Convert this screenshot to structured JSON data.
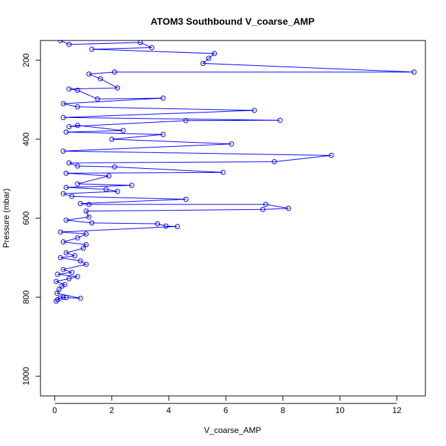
{
  "chart_data": {
    "type": "line",
    "title": "ATOM3 Southbound V_coarse_AMP",
    "xlabel": "V_coarse_AMP",
    "ylabel": "Pressure (mbar)",
    "xlim": [
      -0.5,
      13.0
    ],
    "ylim": [
      1050,
      150
    ],
    "y_reversed": true,
    "x_ticks": [
      "0",
      "2",
      "4",
      "6",
      "8",
      "10",
      "12"
    ],
    "y_ticks": [
      "200",
      "400",
      "600",
      "800",
      "1000"
    ],
    "x_tick_values": [
      0,
      2,
      4,
      6,
      8,
      10,
      12
    ],
    "y_tick_values": [
      200,
      400,
      600,
      800,
      1000
    ],
    "grid": false,
    "series": [
      {
        "color": "#0000ff",
        "marker": "open-circle",
        "points": [
          [
            0.05,
            810
          ],
          [
            0.1,
            806
          ],
          [
            0.2,
            802
          ],
          [
            0.3,
            800
          ],
          [
            0.4,
            801
          ],
          [
            0.9,
            803
          ],
          [
            0.08,
            790
          ],
          [
            0.15,
            780
          ],
          [
            0.25,
            772
          ],
          [
            0.35,
            768
          ],
          [
            0.05,
            760
          ],
          [
            0.5,
            753
          ],
          [
            0.8,
            748
          ],
          [
            0.1,
            742
          ],
          [
            0.6,
            737
          ],
          [
            0.3,
            730
          ],
          [
            1.1,
            717
          ],
          [
            0.9,
            708
          ],
          [
            0.2,
            700
          ],
          [
            0.7,
            695
          ],
          [
            0.4,
            688
          ],
          [
            1.0,
            676
          ],
          [
            1.1,
            667
          ],
          [
            0.3,
            660
          ],
          [
            0.8,
            650
          ],
          [
            1.1,
            640
          ],
          [
            0.2,
            635
          ],
          [
            4.3,
            621
          ],
          [
            3.9,
            620
          ],
          [
            3.6,
            614
          ],
          [
            1.3,
            612
          ],
          [
            0.4,
            605
          ],
          [
            1.2,
            597
          ],
          [
            1.1,
            582
          ],
          [
            7.3,
            578
          ],
          [
            8.2,
            575
          ],
          [
            7.4,
            565
          ],
          [
            1.2,
            565
          ],
          [
            0.9,
            563
          ],
          [
            4.6,
            552
          ],
          [
            0.6,
            545
          ],
          [
            0.3,
            538
          ],
          [
            2.2,
            532
          ],
          [
            1.8,
            527
          ],
          [
            0.4,
            522
          ],
          [
            2.7,
            517
          ],
          [
            0.8,
            513
          ],
          [
            1.9,
            493
          ],
          [
            0.4,
            486
          ],
          [
            5.9,
            484
          ],
          [
            2.1,
            470
          ],
          [
            0.8,
            468
          ],
          [
            0.5,
            460
          ],
          [
            7.7,
            457
          ],
          [
            9.7,
            441
          ],
          [
            0.3,
            430
          ],
          [
            6.2,
            412
          ],
          [
            2.0,
            400
          ],
          [
            3.8,
            388
          ],
          [
            0.4,
            382
          ],
          [
            2.4,
            378
          ],
          [
            0.8,
            365
          ],
          [
            0.5,
            368
          ],
          [
            4.6,
            353
          ],
          [
            7.9,
            352
          ],
          [
            0.3,
            345
          ],
          [
            7.0,
            327
          ],
          [
            0.8,
            318
          ],
          [
            0.3,
            310
          ],
          [
            3.8,
            296
          ],
          [
            1.5,
            298
          ],
          [
            0.8,
            276
          ],
          [
            0.5,
            273
          ],
          [
            2.2,
            270
          ],
          [
            1.6,
            247
          ],
          [
            1.2,
            235
          ],
          [
            2.1,
            230
          ],
          [
            12.6,
            230
          ],
          [
            5.2,
            208
          ],
          [
            5.4,
            195
          ],
          [
            5.6,
            183
          ],
          [
            1.3,
            172
          ],
          [
            3.4,
            168
          ],
          [
            3.0,
            155
          ],
          [
            0.5,
            160
          ],
          [
            0.2,
            150
          ]
        ]
      }
    ]
  }
}
